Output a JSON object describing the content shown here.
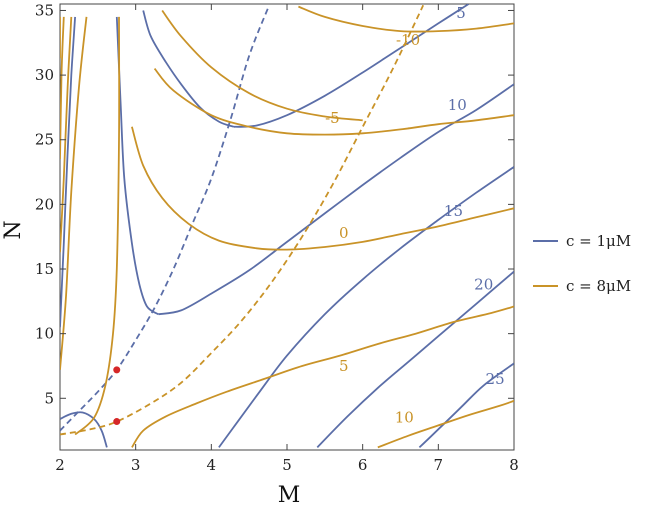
{
  "chart_data": {
    "type": "contour",
    "xlabel": "M",
    "ylabel": "N",
    "xlim": [
      2,
      8
    ],
    "ylim": [
      1,
      35.5
    ],
    "xticks": [
      "2",
      "3",
      "4",
      "5",
      "6",
      "7",
      "8"
    ],
    "yticks": [
      "5",
      "10",
      "15",
      "20",
      "25",
      "30",
      "35"
    ],
    "legend_placement": "right",
    "series": [
      {
        "name": "c = 1μM",
        "color": "#5b6ea8",
        "contours": [
          {
            "label": "5",
            "label_at": [
              7.3,
              34.8
            ],
            "points": [
              [
                4.3,
                26.0
              ],
              [
                4.6,
                26.1
              ],
              [
                5.0,
                26.9
              ],
              [
                5.5,
                28.4
              ],
              [
                6.0,
                30.2
              ],
              [
                6.5,
                32.1
              ],
              [
                7.0,
                34.0
              ],
              [
                7.4,
                35.5
              ]
            ]
          },
          {
            "label": "",
            "points": [
              [
                3.1,
                35.0
              ],
              [
                3.2,
                33.0
              ],
              [
                3.4,
                31.0
              ],
              [
                3.6,
                29.3
              ],
              [
                3.85,
                27.5
              ],
              [
                4.1,
                26.4
              ],
              [
                4.3,
                26.0
              ]
            ]
          },
          {
            "label": "10",
            "label_at": [
              7.25,
              27.7
            ],
            "points": [
              [
                3.3,
                11.5
              ],
              [
                3.6,
                11.8
              ],
              [
                4.0,
                13.1
              ],
              [
                4.5,
                14.9
              ],
              [
                5.0,
                17.1
              ],
              [
                5.5,
                19.3
              ],
              [
                6.0,
                21.5
              ],
              [
                6.5,
                23.6
              ],
              [
                7.0,
                25.6
              ],
              [
                7.5,
                27.3
              ],
              [
                8.0,
                29.3
              ]
            ]
          },
          {
            "label": "",
            "points": [
              [
                2.75,
                34.5
              ],
              [
                2.8,
                28.0
              ],
              [
                2.85,
                22.0
              ],
              [
                2.95,
                17.0
              ],
              [
                3.05,
                13.8
              ],
              [
                3.15,
                12.1
              ],
              [
                3.3,
                11.5
              ]
            ]
          },
          {
            "label": "15",
            "label_at": [
              7.2,
              19.5
            ],
            "points": [
              [
                4.1,
                1.2
              ],
              [
                4.3,
                2.8
              ],
              [
                4.6,
                5.2
              ],
              [
                5.0,
                8.3
              ],
              [
                5.5,
                11.5
              ],
              [
                6.0,
                14.2
              ],
              [
                6.5,
                16.6
              ],
              [
                7.0,
                18.8
              ],
              [
                7.5,
                20.9
              ],
              [
                8.0,
                22.9
              ]
            ]
          },
          {
            "label": "20",
            "label_at": [
              7.6,
              13.8
            ],
            "points": [
              [
                5.4,
                1.2
              ],
              [
                5.8,
                3.6
              ],
              [
                6.2,
                5.8
              ],
              [
                6.6,
                7.8
              ],
              [
                7.0,
                9.8
              ],
              [
                7.5,
                12.3
              ],
              [
                8.0,
                14.8
              ]
            ]
          },
          {
            "label": "25",
            "label_at": [
              7.75,
              6.5
            ],
            "points": [
              [
                6.75,
                1.2
              ],
              [
                7.0,
                2.6
              ],
              [
                7.3,
                4.3
              ],
              [
                7.6,
                6.0
              ],
              [
                8.0,
                7.7
              ]
            ]
          },
          {
            "label": "",
            "points": [
              [
                2.0,
                10.5
              ],
              [
                2.05,
                17.0
              ],
              [
                2.1,
                24.0
              ],
              [
                2.15,
                30.0
              ],
              [
                2.2,
                34.5
              ]
            ]
          },
          {
            "label": "",
            "points": [
              [
                2.0,
                3.4
              ],
              [
                2.15,
                3.8
              ],
              [
                2.3,
                3.9
              ],
              [
                2.45,
                3.4
              ],
              [
                2.55,
                2.5
              ],
              [
                2.62,
                1.2
              ]
            ]
          },
          {
            "label": "",
            "dashed": true,
            "points": [
              [
                2.0,
                2.5
              ],
              [
                2.25,
                4.0
              ],
              [
                2.5,
                5.5
              ],
              [
                2.75,
                7.2
              ],
              [
                3.0,
                9.5
              ],
              [
                3.25,
                12.0
              ],
              [
                3.5,
                15.0
              ],
              [
                3.75,
                18.5
              ],
              [
                4.0,
                22.0
              ],
              [
                4.25,
                26.5
              ],
              [
                4.5,
                31.5
              ],
              [
                4.75,
                35.2
              ]
            ]
          }
        ]
      },
      {
        "name": "c = 8μM",
        "color": "#c99328",
        "contours": [
          {
            "label": "-10",
            "label_at": [
              6.6,
              32.7
            ],
            "points": [
              [
                5.15,
                35.3
              ],
              [
                5.5,
                34.5
              ],
              [
                6.0,
                33.8
              ],
              [
                6.5,
                33.4
              ],
              [
                7.0,
                33.4
              ],
              [
                7.5,
                33.6
              ],
              [
                8.0,
                34.0
              ]
            ]
          },
          {
            "label": "",
            "points": [
              [
                3.35,
                35.0
              ],
              [
                3.6,
                33.0
              ],
              [
                4.0,
                30.6
              ],
              [
                4.5,
                28.6
              ],
              [
                5.0,
                27.4
              ],
              [
                5.5,
                26.8
              ],
              [
                6.0,
                26.5
              ]
            ]
          },
          {
            "label": "-5",
            "label_at": [
              5.6,
              26.7
            ],
            "points": [
              [
                3.25,
                30.5
              ],
              [
                3.5,
                28.8
              ],
              [
                4.0,
                26.9
              ],
              [
                4.5,
                26.0
              ],
              [
                5.0,
                25.5
              ],
              [
                5.5,
                25.4
              ],
              [
                6.0,
                25.5
              ],
              [
                6.5,
                25.8
              ],
              [
                7.0,
                26.2
              ],
              [
                7.5,
                26.5
              ],
              [
                8.0,
                26.9
              ]
            ]
          },
          {
            "label": "0",
            "label_at": [
              5.75,
              17.8
            ],
            "points": [
              [
                2.95,
                26.0
              ],
              [
                3.1,
                23.0
              ],
              [
                3.35,
                20.5
              ],
              [
                3.7,
                18.5
              ],
              [
                4.1,
                17.2
              ],
              [
                4.6,
                16.6
              ],
              [
                5.0,
                16.5
              ],
              [
                5.5,
                16.7
              ],
              [
                6.0,
                17.1
              ],
              [
                6.5,
                17.7
              ],
              [
                7.0,
                18.3
              ],
              [
                7.5,
                19.0
              ],
              [
                8.0,
                19.7
              ]
            ]
          },
          {
            "label": "5",
            "label_at": [
              5.75,
              7.5
            ],
            "points": [
              [
                2.95,
                1.2
              ],
              [
                3.1,
                2.5
              ],
              [
                3.4,
                3.6
              ],
              [
                3.8,
                4.6
              ],
              [
                4.2,
                5.5
              ],
              [
                4.7,
                6.5
              ],
              [
                5.2,
                7.5
              ],
              [
                5.7,
                8.3
              ],
              [
                6.2,
                9.2
              ],
              [
                6.7,
                10.0
              ],
              [
                7.2,
                10.9
              ],
              [
                7.7,
                11.6
              ],
              [
                8.0,
                12.1
              ]
            ]
          },
          {
            "label": "10",
            "label_at": [
              6.55,
              3.5
            ],
            "points": [
              [
                6.2,
                1.2
              ],
              [
                6.6,
                2.1
              ],
              [
                7.0,
                2.9
              ],
              [
                7.4,
                3.7
              ],
              [
                7.8,
                4.4
              ],
              [
                8.0,
                4.8
              ]
            ]
          },
          {
            "label": "",
            "points": [
              [
                2.78,
                34.5
              ],
              [
                2.78,
                25.0
              ],
              [
                2.75,
                15.0
              ],
              [
                2.7,
                10.0
              ],
              [
                2.6,
                6.0
              ],
              [
                2.45,
                3.5
              ],
              [
                2.2,
                2.2
              ]
            ]
          },
          {
            "label": "",
            "points": [
              [
                2.0,
                16.3
              ],
              [
                2.05,
                22.0
              ],
              [
                2.1,
                29.0
              ],
              [
                2.15,
                34.5
              ]
            ]
          },
          {
            "label": "",
            "points": [
              [
                2.0,
                7.2
              ],
              [
                2.08,
                13.0
              ],
              [
                2.15,
                21.0
              ],
              [
                2.25,
                29.0
              ],
              [
                2.35,
                34.5
              ]
            ]
          },
          {
            "label": "",
            "points": [
              [
                2.0,
                23.5
              ],
              [
                2.02,
                30.0
              ],
              [
                2.05,
                34.5
              ]
            ]
          },
          {
            "label": "",
            "points": [
              [
                2.0,
                31.3
              ],
              [
                2.0,
                34.5
              ]
            ]
          },
          {
            "label": "",
            "dashed": true,
            "points": [
              [
                2.0,
                2.2
              ],
              [
                2.4,
                2.6
              ],
              [
                2.75,
                3.2
              ],
              [
                3.2,
                4.6
              ],
              [
                3.6,
                6.2
              ],
              [
                4.0,
                8.5
              ],
              [
                4.4,
                11.0
              ],
              [
                4.8,
                14.0
              ],
              [
                5.2,
                17.5
              ],
              [
                5.6,
                21.5
              ],
              [
                6.0,
                26.0
              ],
              [
                6.4,
                30.5
              ],
              [
                6.8,
                35.4
              ]
            ]
          }
        ]
      }
    ],
    "markers": [
      {
        "x": 2.75,
        "y": 7.2,
        "color": "#d62728"
      },
      {
        "x": 2.75,
        "y": 3.2,
        "color": "#d62728"
      }
    ]
  },
  "legend": {
    "items": [
      {
        "label": "c = 1μM",
        "color": "#5b6ea8"
      },
      {
        "label": "c = 8μM",
        "color": "#c99328"
      }
    ]
  }
}
